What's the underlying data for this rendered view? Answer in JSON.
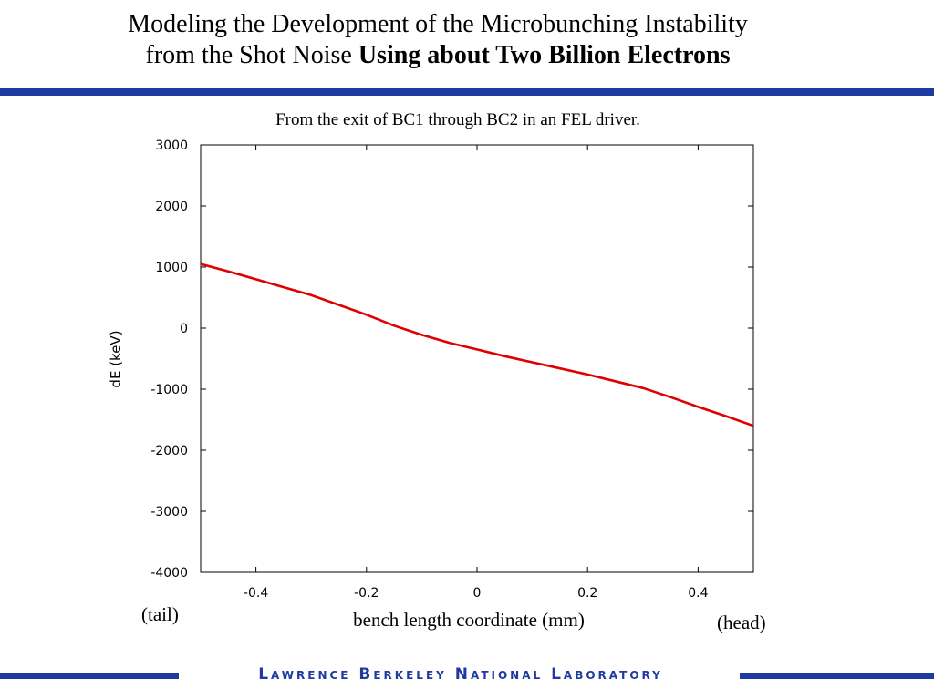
{
  "slide": {
    "title_line1": "Modeling the Development of the Microbunching Instability",
    "title_line2_normal": "from the Shot Noise ",
    "title_line2_bold": "Using about Two Billion Electrons",
    "subtitle": "From the exit of BC1 through BC2 in an FEL driver.",
    "annotation_left": "(tail)",
    "annotation_right": "(head)",
    "footer": "Lawrence Berkeley National Laboratory"
  },
  "colors": {
    "brand_blue": "#1f3aa0",
    "series_red": "#e00000",
    "axis": "#000000"
  },
  "chart_data": {
    "type": "line",
    "xlabel": "bench length coordinate (mm)",
    "ylabel": "dE (keV)",
    "xlim": [
      -0.5,
      0.5
    ],
    "ylim": [
      -4000,
      3000
    ],
    "xticks": [
      -0.4,
      -0.2,
      0,
      0.2,
      0.4
    ],
    "xtick_labels": [
      "-0.4",
      "-0.2",
      "0",
      "0.2",
      "0.4"
    ],
    "yticks": [
      -4000,
      -3000,
      -2000,
      -1000,
      0,
      1000,
      2000,
      3000
    ],
    "ytick_labels": [
      "-4000",
      "-3000",
      "-2000",
      "-1000",
      "0",
      "1000",
      "2000",
      "3000"
    ],
    "grid": false,
    "series": [
      {
        "x": [
          -0.5,
          -0.45,
          -0.4,
          -0.35,
          -0.3,
          -0.25,
          -0.2,
          -0.15,
          -0.1,
          -0.05,
          0,
          0.05,
          0.1,
          0.15,
          0.2,
          0.25,
          0.3,
          0.35,
          0.4,
          0.45,
          0.5
        ],
        "y": [
          1050,
          930,
          800,
          670,
          540,
          380,
          220,
          40,
          -110,
          -240,
          -350,
          -460,
          -560,
          -660,
          -760,
          -870,
          -980,
          -1130,
          -1290,
          -1440,
          -1600
        ]
      }
    ]
  }
}
